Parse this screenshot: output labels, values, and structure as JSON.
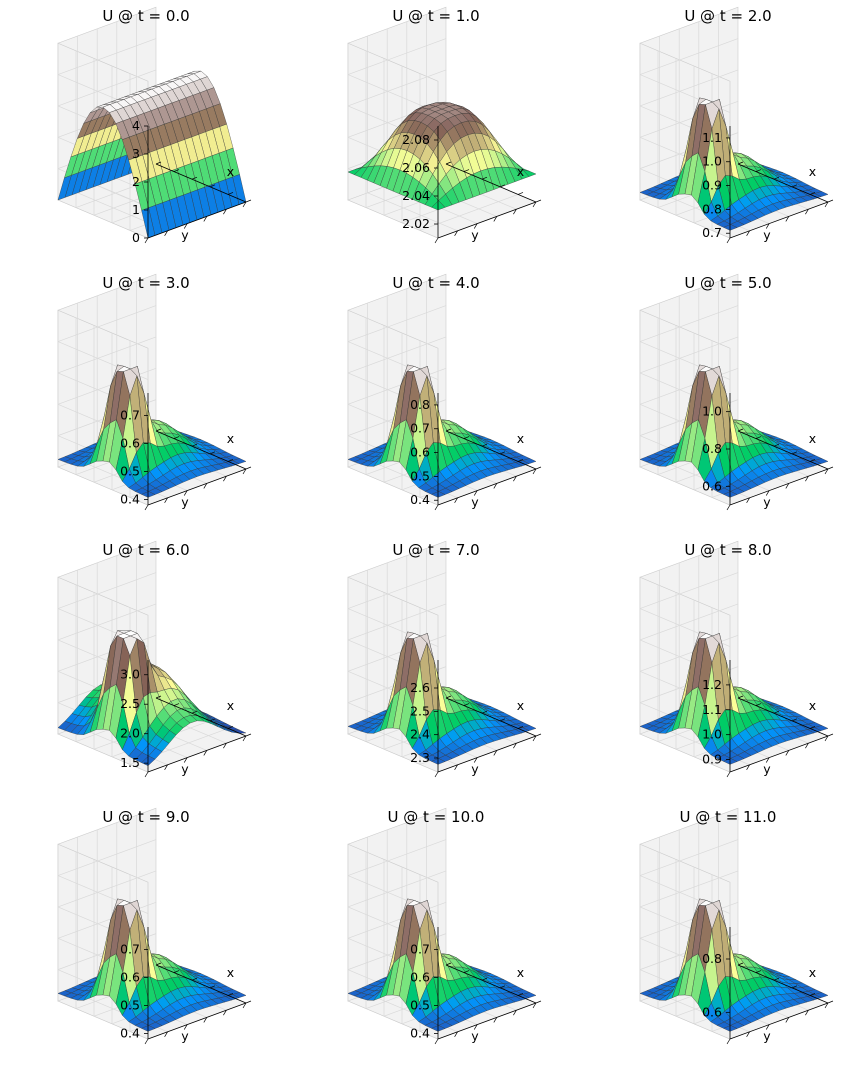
{
  "figure": {
    "colormap": "terrain"
  },
  "chart_data": [
    {
      "type": "surface",
      "title": "U @ t = 0.0",
      "xlabel": "x",
      "ylabel": "y",
      "zlim": [
        0,
        4
      ],
      "zticks": [
        "0",
        "1",
        "2",
        "3",
        "4"
      ],
      "profile": "ridge",
      "grid": true
    },
    {
      "type": "surface",
      "title": "U @ t = 1.0",
      "xlabel": "x",
      "ylabel": "y",
      "zlim": [
        2.01,
        2.09
      ],
      "zticks": [
        "2.02",
        "2.04",
        "2.06",
        "2.08"
      ],
      "profile": "dome",
      "grid": true
    },
    {
      "type": "surface",
      "title": "U @ t = 2.0",
      "xlabel": "x",
      "ylabel": "y",
      "zlim": [
        0.68,
        1.15
      ],
      "zticks": [
        "0.7",
        "0.8",
        "0.9",
        "1.0",
        "1.1"
      ],
      "profile": "peak",
      "grid": true
    },
    {
      "type": "surface",
      "title": "U @ t = 3.0",
      "xlabel": "x",
      "ylabel": "y",
      "zlim": [
        0.38,
        0.78
      ],
      "zticks": [
        "0.4",
        "0.5",
        "0.6",
        "0.7"
      ],
      "profile": "peak",
      "grid": true
    },
    {
      "type": "surface",
      "title": "U @ t = 4.0",
      "xlabel": "x",
      "ylabel": "y",
      "zlim": [
        0.38,
        0.85
      ],
      "zticks": [
        "0.4",
        "0.5",
        "0.6",
        "0.7",
        "0.8"
      ],
      "profile": "peak",
      "grid": true
    },
    {
      "type": "surface",
      "title": "U @ t = 5.0",
      "xlabel": "x",
      "ylabel": "y",
      "zlim": [
        0.5,
        1.1
      ],
      "zticks": [
        "0.6",
        "0.8",
        "1.0"
      ],
      "profile": "peak",
      "grid": true
    },
    {
      "type": "surface",
      "title": "U @ t = 6.0",
      "xlabel": "x",
      "ylabel": "y",
      "zlim": [
        1.35,
        3.25
      ],
      "zticks": [
        "1.5",
        "2.0",
        "2.5",
        "3.0"
      ],
      "profile": "peakwide",
      "grid": true
    },
    {
      "type": "surface",
      "title": "U @ t = 7.0",
      "xlabel": "x",
      "ylabel": "y",
      "zlim": [
        2.24,
        2.72
      ],
      "zticks": [
        "2.3",
        "2.4",
        "2.5",
        "2.6"
      ],
      "profile": "peak",
      "grid": true
    },
    {
      "type": "surface",
      "title": "U @ t = 8.0",
      "xlabel": "x",
      "ylabel": "y",
      "zlim": [
        0.85,
        1.3
      ],
      "zticks": [
        "0.9",
        "1.0",
        "1.1",
        "1.2"
      ],
      "profile": "peak",
      "grid": true
    },
    {
      "type": "surface",
      "title": "U @ t = 9.0",
      "xlabel": "x",
      "ylabel": "y",
      "zlim": [
        0.38,
        0.78
      ],
      "zticks": [
        "0.4",
        "0.5",
        "0.6",
        "0.7"
      ],
      "profile": "peak",
      "grid": true
    },
    {
      "type": "surface",
      "title": "U @ t = 10.0",
      "xlabel": "x",
      "ylabel": "y",
      "zlim": [
        0.38,
        0.78
      ],
      "zticks": [
        "0.4",
        "0.5",
        "0.6",
        "0.7"
      ],
      "profile": "peak",
      "grid": true
    },
    {
      "type": "surface",
      "title": "U @ t = 11.0",
      "xlabel": "x",
      "ylabel": "y",
      "zlim": [
        0.5,
        0.92
      ],
      "zticks": [
        "0.6",
        "0.8"
      ],
      "profile": "peak",
      "grid": true
    }
  ]
}
